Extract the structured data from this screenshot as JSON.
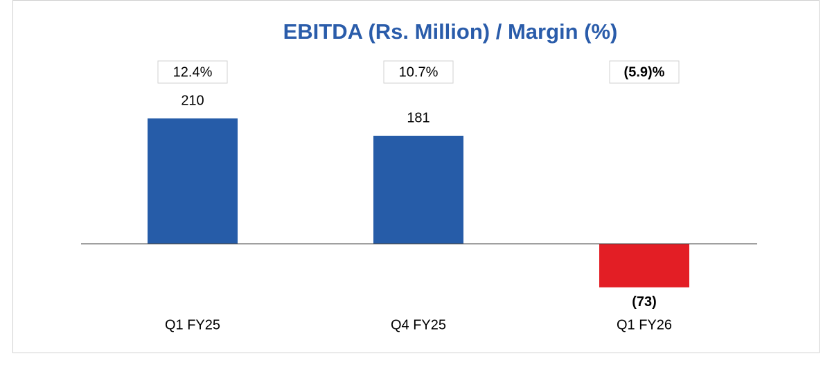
{
  "chart_data": {
    "type": "bar",
    "title": "EBITDA (Rs. Million) / Margin (%)",
    "categories": [
      "Q1 FY25",
      "Q4 FY25",
      "Q1 FY26"
    ],
    "values": [
      210,
      181,
      -73
    ],
    "value_labels": [
      "210",
      "181",
      "(73)"
    ],
    "colors": [
      "#265ca8",
      "#265ca8",
      "#e31e25"
    ],
    "margins": [
      12.4,
      10.7,
      -5.9
    ],
    "margin_labels": [
      "12.4%",
      "10.7%",
      "(5.9)%"
    ],
    "ylim": [
      -100,
      250
    ]
  }
}
